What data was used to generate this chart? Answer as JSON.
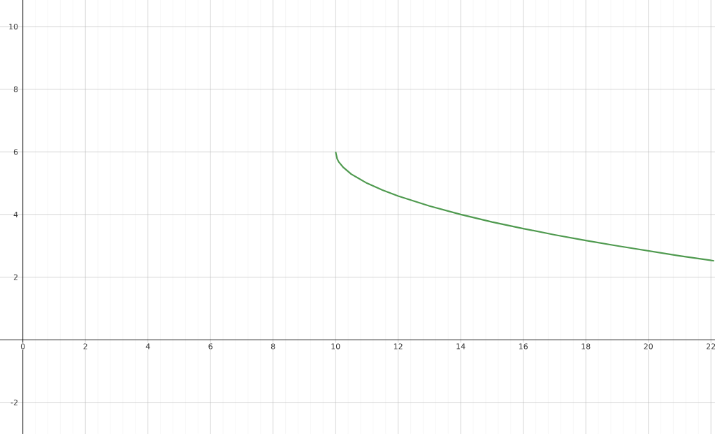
{
  "chart_data": {
    "type": "line",
    "x": [
      10,
      10.05,
      10.1,
      10.25,
      10.5,
      11,
      11.5,
      12,
      13,
      14,
      15,
      16,
      17,
      18,
      19,
      20,
      21,
      22.1
    ],
    "series": [
      {
        "color": "#4f9a4f",
        "values": [
          6,
          5.78,
          5.68,
          5.5,
          5.29,
          5,
          4.78,
          4.59,
          4.27,
          4,
          3.76,
          3.55,
          3.35,
          3.17,
          3,
          2.84,
          2.68,
          2.52
        ]
      }
    ],
    "xlim": [
      -0.73,
      22.13
    ],
    "ylim": [
      -3.01,
      10.85
    ],
    "xticks": [
      0,
      2,
      4,
      6,
      8,
      10,
      12,
      14,
      16,
      18,
      20,
      22
    ],
    "yticks": [
      -2,
      2,
      4,
      6,
      8,
      10
    ],
    "grid": true,
    "line_style": "solid",
    "marker": "none"
  }
}
